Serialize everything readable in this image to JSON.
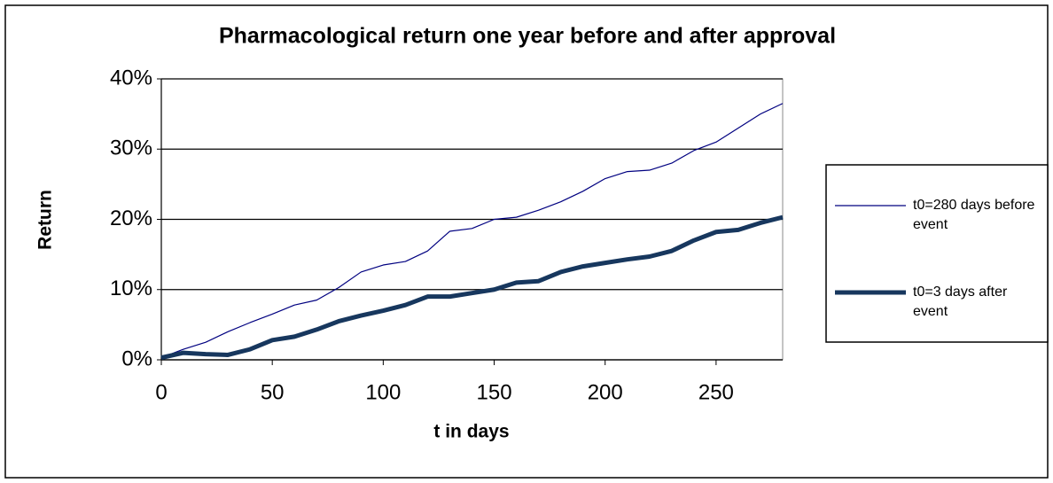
{
  "chart_data": {
    "type": "line",
    "title": "Pharmacological return one year before and after approval",
    "x_label": "t in days",
    "y_label": "Return",
    "x": [
      0,
      10,
      20,
      30,
      40,
      50,
      60,
      70,
      80,
      90,
      100,
      110,
      120,
      130,
      140,
      150,
      160,
      170,
      180,
      190,
      200,
      210,
      220,
      230,
      240,
      250,
      260,
      270,
      280
    ],
    "series": [
      {
        "name": "t0=280 days before event",
        "color": "#000080",
        "width": 1.2,
        "values": [
          0.3,
          1.5,
          2.5,
          4,
          5.3,
          6.5,
          7.8,
          8.5,
          10.3,
          12.5,
          13.5,
          14,
          15.5,
          18.3,
          18.7,
          20,
          20.3,
          21.3,
          22.5,
          24,
          25.8,
          26.8,
          27,
          28,
          29.8,
          31,
          33,
          35,
          36.5
        ]
      },
      {
        "name": "t0=3 days after event",
        "color": "#17375e",
        "width": 5,
        "values": [
          0.3,
          1,
          0.8,
          0.7,
          1.5,
          2.8,
          3.3,
          4.3,
          5.5,
          6.3,
          7,
          7.8,
          9,
          9,
          9.5,
          10,
          11,
          11.2,
          12.5,
          13.3,
          13.8,
          14.3,
          14.7,
          15.5,
          17,
          18.2,
          18.5,
          19.5,
          20.3
        ]
      }
    ],
    "xlim": [
      0,
      280
    ],
    "xticks": [
      0,
      50,
      100,
      150,
      200,
      250
    ],
    "ylim": [
      0,
      40
    ],
    "yticks": [
      {
        "value": 0,
        "label": "0%"
      },
      {
        "value": 10,
        "label": "10%"
      },
      {
        "value": 20,
        "label": "20%"
      },
      {
        "value": 30,
        "label": "30%"
      },
      {
        "value": 40,
        "label": "40%"
      }
    ],
    "grid": true,
    "legend": "right"
  }
}
